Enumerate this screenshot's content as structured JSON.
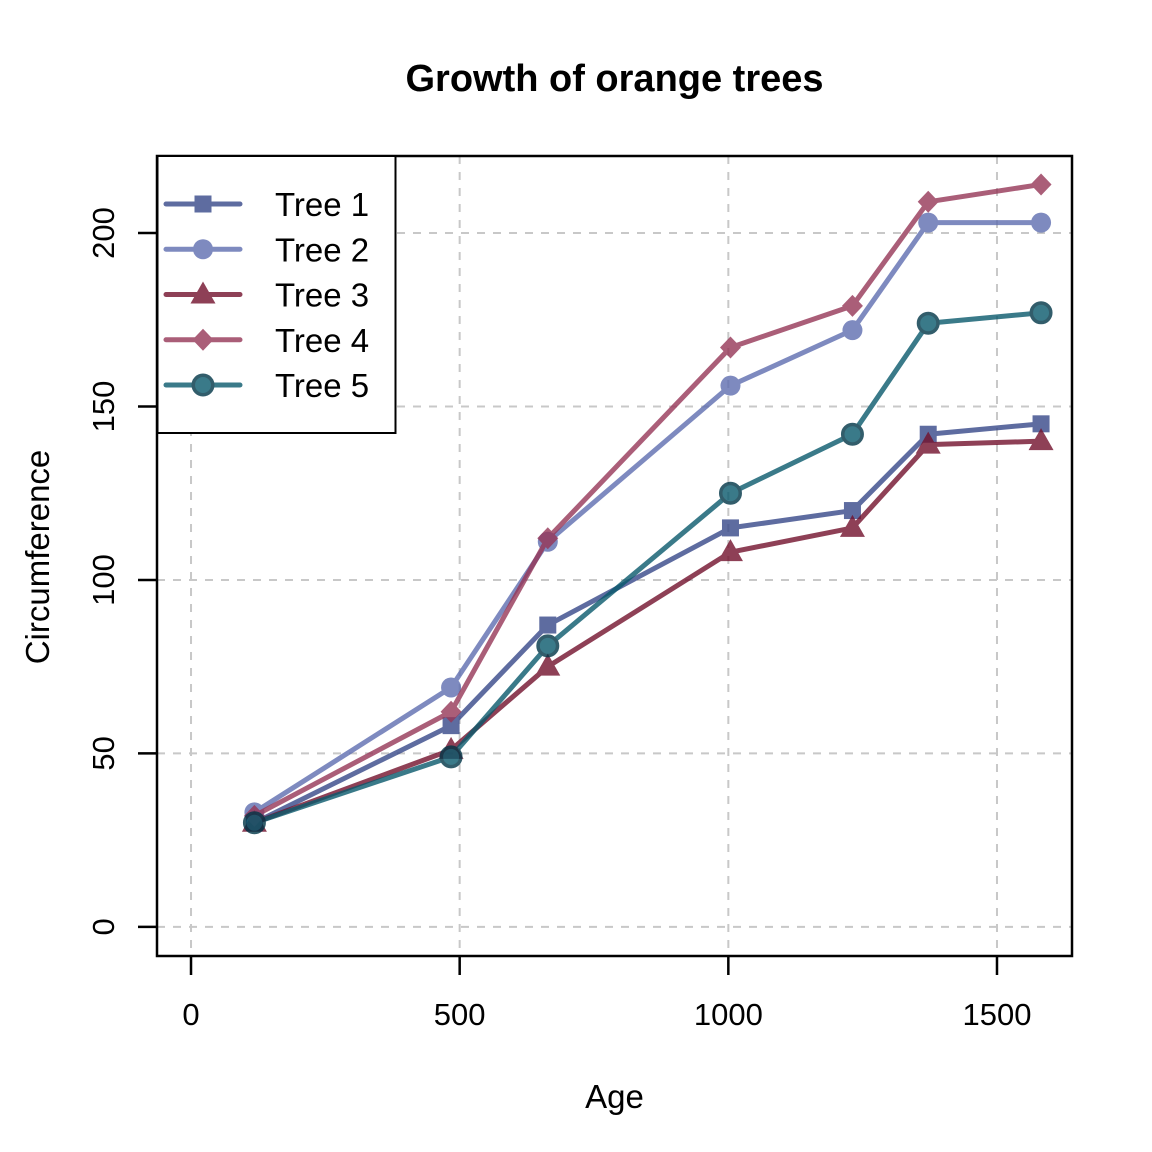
{
  "chart_data": {
    "type": "line",
    "title": "Growth of orange trees",
    "xlabel": "Age",
    "ylabel": "Circumference",
    "x": [
      118,
      484,
      664,
      1004,
      1231,
      1372,
      1582
    ],
    "series": [
      {
        "name": "Tree 1",
        "marker": "square",
        "color": "#374889",
        "values": [
          30,
          58,
          87,
          115,
          120,
          142,
          145
        ]
      },
      {
        "name": "Tree 2",
        "marker": "circle",
        "color": "#5e6db0",
        "values": [
          33,
          69,
          111,
          156,
          172,
          203,
          203
        ]
      },
      {
        "name": "Tree 3",
        "marker": "triangle",
        "color": "#73112c",
        "values": [
          30,
          51,
          75,
          108,
          115,
          139,
          140
        ]
      },
      {
        "name": "Tree 4",
        "marker": "diamond",
        "color": "#963657",
        "values": [
          32,
          62,
          112,
          167,
          179,
          209,
          214
        ]
      },
      {
        "name": "Tree 5",
        "marker": "circle-ring",
        "color": "#09596c",
        "ring_color": "#003547",
        "values": [
          30,
          49,
          81,
          125,
          142,
          174,
          177
        ]
      }
    ],
    "series_opacity": 0.8,
    "x_ticks": [
      0,
      500,
      1000,
      1500
    ],
    "y_ticks": [
      0,
      50,
      100,
      150,
      200
    ],
    "xlim": [
      -63.3,
      1639.6
    ],
    "ylim": [
      -8.4,
      222.2
    ],
    "grid": true,
    "grid_color": "#c8c8c8",
    "axis_color": "#000000",
    "legend_position": "topleft",
    "legend_labels": [
      "Tree 1",
      "Tree 2",
      "Tree 3",
      "Tree 4",
      "Tree 5"
    ]
  }
}
